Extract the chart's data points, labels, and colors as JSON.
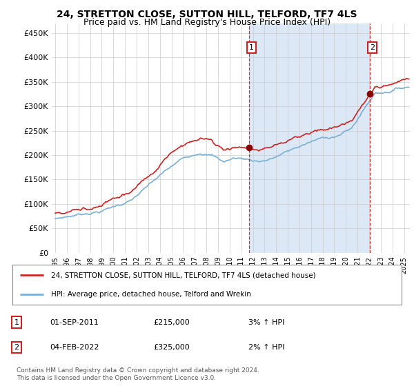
{
  "title": "24, STRETTON CLOSE, SUTTON HILL, TELFORD, TF7 4LS",
  "subtitle": "Price paid vs. HM Land Registry's House Price Index (HPI)",
  "title_fontsize": 10,
  "subtitle_fontsize": 9,
  "ylabel_ticks": [
    "£0",
    "£50K",
    "£100K",
    "£150K",
    "£200K",
    "£250K",
    "£300K",
    "£350K",
    "£400K",
    "£450K"
  ],
  "ytick_values": [
    0,
    50000,
    100000,
    150000,
    200000,
    250000,
    300000,
    350000,
    400000,
    450000
  ],
  "ylim": [
    0,
    470000
  ],
  "hpi_color": "#7bafd4",
  "price_color": "#cc2222",
  "marker_color": "#8b0000",
  "shade_color": "#dce8f5",
  "sale1_date": "01-SEP-2011",
  "sale1_price": 215000,
  "sale2_date": "04-FEB-2022",
  "sale2_price": 325000,
  "sale1_hpi_note": "3% ↑ HPI",
  "sale2_hpi_note": "2% ↑ HPI",
  "legend_label1": "24, STRETTON CLOSE, SUTTON HILL, TELFORD, TF7 4LS (detached house)",
  "legend_label2": "HPI: Average price, detached house, Telford and Wrekin",
  "footer": "Contains HM Land Registry data © Crown copyright and database right 2024.\nThis data is licensed under the Open Government Licence v3.0.",
  "sale1_x": 2011.67,
  "sale2_x": 2022.08,
  "xlim_left": 1994.7,
  "xlim_right": 2025.5,
  "background_color": "#ffffff",
  "plot_bg": "#ffffff",
  "grid_color": "#cccccc"
}
